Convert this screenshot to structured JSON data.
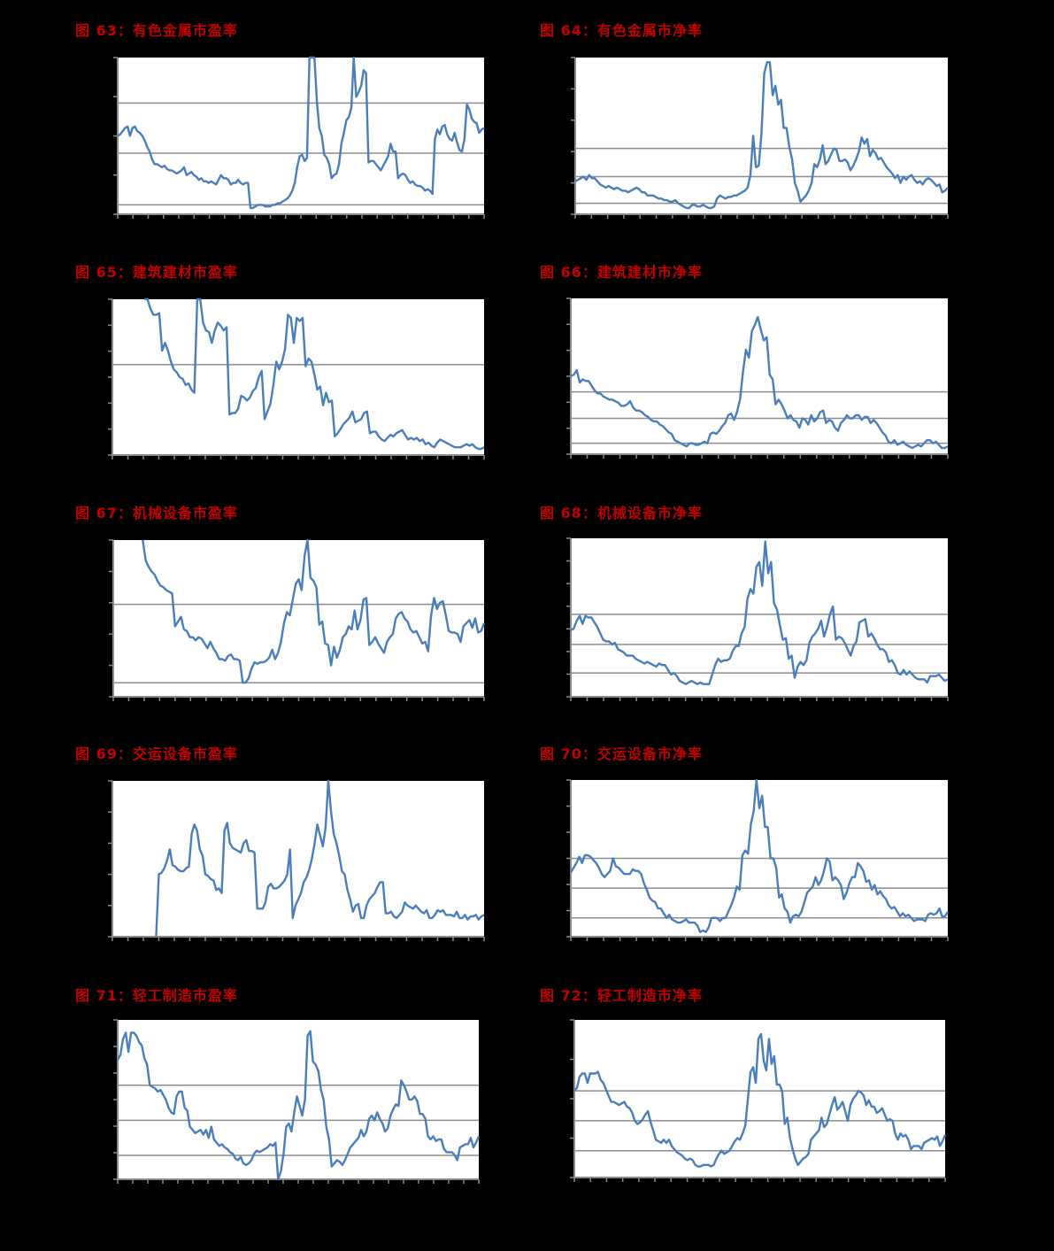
{
  "page": {
    "background": "#000000",
    "title_color": "#c00000",
    "line_color": "#4a7ebb",
    "ref_line_color": "#8c8c8c",
    "plot_bg": "#ffffff"
  },
  "chart_data": [
    {
      "id": "fig63",
      "type": "line",
      "title": "图 63：有色金属市盈率",
      "xlabel": "",
      "ylabel": "",
      "grid": false,
      "legend": null,
      "y_ticks": 4,
      "x_ticks": 24,
      "ref_lines": [
        71,
        39,
        6
      ],
      "note": "values normalized 0-100 of plot height; peaks clipped at top",
      "values": [
        50,
        51,
        53,
        55,
        56,
        50,
        55,
        56,
        53,
        52,
        50,
        47,
        43,
        40,
        35,
        32,
        32,
        31,
        30,
        31,
        29,
        28,
        28,
        27,
        26,
        27,
        28,
        30,
        25,
        26,
        27,
        25,
        24,
        22,
        23,
        21,
        21,
        20,
        21,
        20,
        19,
        22,
        25,
        23,
        23,
        22,
        19,
        20,
        20,
        22,
        20,
        19,
        20,
        20,
        4,
        4,
        5,
        6,
        6,
        6,
        5,
        5,
        5,
        6,
        6,
        7,
        7,
        8,
        9,
        10,
        12,
        15,
        20,
        30,
        37,
        38,
        34,
        36,
        100,
        100,
        100,
        72,
        55,
        50,
        38,
        36,
        32,
        23,
        25,
        26,
        32,
        45,
        52,
        60,
        62,
        68,
        100,
        75,
        78,
        82,
        92,
        90,
        33,
        34,
        34,
        32,
        30,
        28,
        31,
        34,
        37,
        45,
        40,
        40,
        23,
        25,
        26,
        25,
        22,
        20,
        21,
        19,
        18,
        18,
        17,
        15,
        16,
        15,
        13,
        48,
        54,
        51,
        56,
        57,
        51,
        48,
        47,
        52,
        46,
        41,
        40,
        48,
        70,
        67,
        61,
        59,
        58,
        52,
        54,
        55
      ]
    },
    {
      "id": "fig64",
      "type": "line",
      "title": "图 64：有色金属市净率",
      "xlabel": "",
      "ylabel": "",
      "grid": false,
      "legend": null,
      "y_ticks": 5,
      "x_ticks": 23,
      "ref_lines": [
        42,
        24,
        7
      ],
      "values": [
        21,
        22,
        23,
        24,
        22,
        25,
        23,
        23,
        21,
        19,
        18,
        17,
        18,
        17,
        16,
        17,
        16,
        15,
        15,
        14,
        15,
        16,
        17,
        16,
        14,
        14,
        12,
        12,
        12,
        11,
        10,
        10,
        9,
        9,
        8,
        8,
        9,
        7,
        6,
        5,
        4,
        4,
        6,
        6,
        5,
        5,
        6,
        5,
        4,
        4,
        5,
        10,
        12,
        11,
        10,
        11,
        11,
        12,
        12,
        13,
        14,
        15,
        17,
        25,
        50,
        30,
        31,
        52,
        90,
        97,
        97,
        76,
        82,
        70,
        73,
        55,
        55,
        43,
        35,
        20,
        15,
        8,
        10,
        12,
        15,
        20,
        32,
        30,
        35,
        44,
        32,
        34,
        38,
        42,
        41,
        34,
        34,
        35,
        33,
        28,
        31,
        35,
        40,
        49,
        45,
        48,
        37,
        41,
        39,
        35,
        36,
        33,
        30,
        28,
        26,
        23,
        25,
        20,
        24,
        22,
        24,
        25,
        22,
        20,
        21,
        19,
        22,
        23,
        22,
        20,
        18,
        19,
        14,
        15,
        17
      ]
    },
    {
      "id": "fig65",
      "type": "line",
      "title": "图 65：建筑建材市盈率",
      "xlabel": "",
      "ylabel": "",
      "grid": false,
      "legend": null,
      "y_ticks": 6,
      "x_ticks": 24,
      "ref_lines": [
        58
      ],
      "values": [
        null,
        null,
        null,
        null,
        null,
        null,
        null,
        null,
        null,
        null,
        null,
        100,
        100,
        94,
        90,
        90,
        91,
        67,
        72,
        67,
        60,
        55,
        53,
        50,
        49,
        45,
        46,
        42,
        40,
        100,
        100,
        85,
        80,
        79,
        72,
        80,
        85,
        83,
        80,
        82,
        26,
        27,
        27,
        30,
        38,
        37,
        35,
        37,
        41,
        43,
        50,
        54,
        23,
        28,
        33,
        45,
        60,
        55,
        60,
        68,
        90,
        88,
        72,
        88,
        86,
        88,
        57,
        62,
        60,
        52,
        42,
        44,
        32,
        40,
        34,
        35,
        12,
        14,
        17,
        20,
        22,
        24,
        28,
        21,
        22,
        23,
        27,
        28,
        14,
        15,
        15,
        12,
        10,
        9,
        11,
        13,
        12,
        14,
        15,
        16,
        13,
        10,
        11,
        10,
        11,
        9,
        10,
        7,
        8,
        6,
        5,
        8,
        10,
        9,
        8,
        7,
        6,
        5,
        5,
        5,
        6,
        7,
        6,
        7,
        5,
        4,
        4,
        5
      ]
    },
    {
      "id": "fig66",
      "type": "line",
      "title": "图 66：建筑建材市净率",
      "xlabel": "",
      "ylabel": "",
      "grid": false,
      "legend": null,
      "y_ticks": 6,
      "x_ticks": 23,
      "ref_lines": [
        40,
        23,
        7
      ],
      "values": [
        50,
        51,
        54,
        46,
        48,
        47,
        47,
        44,
        41,
        39,
        39,
        37,
        36,
        35,
        35,
        34,
        33,
        31,
        31,
        32,
        34,
        30,
        28,
        28,
        27,
        25,
        24,
        22,
        21,
        21,
        19,
        18,
        16,
        14,
        13,
        9,
        8,
        7,
        6,
        5,
        7,
        7,
        6,
        6,
        7,
        8,
        7,
        13,
        14,
        13,
        15,
        18,
        20,
        25,
        26,
        22,
        27,
        35,
        53,
        67,
        62,
        79,
        83,
        88,
        80,
        73,
        75,
        51,
        48,
        32,
        35,
        32,
        28,
        23,
        25,
        22,
        21,
        17,
        23,
        22,
        19,
        25,
        21,
        23,
        27,
        28,
        20,
        22,
        21,
        17,
        15,
        20,
        22,
        25,
        23,
        23,
        25,
        25,
        22,
        24,
        24,
        20,
        22,
        20,
        17,
        14,
        12,
        8,
        7,
        9,
        6,
        7,
        8,
        6,
        5,
        4,
        5,
        6,
        5,
        7,
        9,
        9,
        7,
        8,
        6,
        4,
        4,
        5
      ]
    },
    {
      "id": "fig67",
      "type": "line",
      "title": "图 67：机械设备市盈率",
      "xlabel": "",
      "ylabel": "",
      "grid": false,
      "legend": null,
      "y_ticks": 5,
      "x_ticks": 24,
      "ref_lines": [
        59,
        9
      ],
      "values": [
        null,
        null,
        null,
        null,
        null,
        null,
        null,
        null,
        null,
        null,
        100,
        87,
        83,
        80,
        78,
        74,
        71,
        70,
        68,
        67,
        66,
        45,
        48,
        51,
        43,
        42,
        38,
        38,
        36,
        38,
        37,
        34,
        31,
        35,
        31,
        28,
        24,
        24,
        23,
        26,
        27,
        24,
        24,
        23,
        9,
        9,
        12,
        18,
        22,
        21,
        22,
        22,
        23,
        25,
        30,
        24,
        28,
        35,
        47,
        54,
        52,
        62,
        72,
        75,
        68,
        90,
        100,
        76,
        74,
        70,
        46,
        48,
        34,
        33,
        20,
        32,
        25,
        30,
        38,
        40,
        45,
        43,
        55,
        43,
        49,
        62,
        63,
        33,
        35,
        38,
        34,
        31,
        28,
        35,
        38,
        40,
        50,
        53,
        54,
        50,
        48,
        43,
        41,
        42,
        38,
        34,
        35,
        29,
        52,
        63,
        56,
        60,
        61,
        52,
        42,
        41,
        41,
        40,
        35,
        45,
        47,
        49,
        44,
        50,
        41,
        42,
        47
      ]
    },
    {
      "id": "fig68",
      "type": "line",
      "title": "图 68：机械设备市净率",
      "xlabel": "",
      "ylabel": "",
      "grid": false,
      "legend": null,
      "y_ticks": 7,
      "x_ticks": 23,
      "ref_lines": [
        52,
        33,
        15
      ],
      "values": [
        42,
        43,
        48,
        51,
        46,
        51,
        50,
        50,
        47,
        44,
        40,
        36,
        35,
        35,
        33,
        34,
        30,
        29,
        28,
        26,
        26,
        26,
        24,
        23,
        22,
        21,
        22,
        21,
        20,
        19,
        21,
        20,
        20,
        17,
        14,
        15,
        13,
        10,
        9,
        8,
        9,
        10,
        9,
        8,
        9,
        8,
        8,
        8,
        14,
        20,
        24,
        22,
        23,
        23,
        24,
        29,
        32,
        32,
        40,
        44,
        62,
        68,
        65,
        82,
        85,
        70,
        98,
        78,
        85,
        59,
        55,
        45,
        36,
        37,
        24,
        26,
        12,
        19,
        22,
        20,
        23,
        34,
        38,
        40,
        43,
        48,
        38,
        44,
        52,
        57,
        36,
        38,
        37,
        34,
        30,
        26,
        32,
        35,
        47,
        48,
        49,
        38,
        40,
        37,
        33,
        30,
        30,
        28,
        22,
        23,
        20,
        15,
        14,
        17,
        14,
        16,
        14,
        12,
        11,
        11,
        11,
        9,
        13,
        13,
        13,
        14,
        12,
        10,
        11
      ]
    },
    {
      "id": "fig69",
      "type": "line",
      "title": "图 69：交运设备市盈率",
      "xlabel": "",
      "ylabel": "",
      "grid": false,
      "legend": null,
      "y_ticks": 5,
      "x_ticks": 24,
      "ref_lines": [],
      "values": [
        null,
        null,
        null,
        null,
        null,
        null,
        null,
        null,
        null,
        null,
        null,
        null,
        null,
        null,
        null,
        null,
        0,
        40,
        41,
        44,
        49,
        56,
        46,
        45,
        43,
        42,
        42,
        44,
        45,
        66,
        72,
        68,
        56,
        52,
        40,
        39,
        37,
        36,
        30,
        31,
        28,
        68,
        73,
        60,
        57,
        56,
        55,
        54,
        60,
        62,
        55,
        55,
        54,
        18,
        18,
        18,
        22,
        32,
        34,
        31,
        31,
        32,
        34,
        36,
        40,
        56,
        12,
        20,
        24,
        28,
        35,
        38,
        43,
        50,
        60,
        72,
        65,
        58,
        70,
        100,
        80,
        66,
        60,
        52,
        42,
        40,
        30,
        24,
        16,
        20,
        21,
        12,
        12,
        20,
        24,
        26,
        28,
        32,
        35,
        35,
        15,
        15,
        16,
        13,
        12,
        14,
        16,
        22,
        20,
        19,
        18,
        20,
        18,
        16,
        15,
        17,
        12,
        12,
        14,
        17,
        16,
        17,
        14,
        14,
        14,
        13,
        16,
        12,
        12,
        14,
        11,
        13,
        13,
        14,
        11,
        13,
        14
      ]
    },
    {
      "id": "fig70",
      "type": "line",
      "title": "图 70：交运设备市净率",
      "xlabel": "",
      "ylabel": "",
      "grid": false,
      "legend": null,
      "y_ticks": 6,
      "x_ticks": 23,
      "ref_lines": [
        50,
        31,
        12
      ],
      "values": [
        41,
        44,
        47,
        51,
        47,
        52,
        52,
        51,
        49,
        47,
        44,
        40,
        38,
        40,
        42,
        50,
        45,
        44,
        42,
        40,
        40,
        40,
        43,
        42,
        42,
        40,
        34,
        30,
        25,
        23,
        22,
        18,
        18,
        15,
        12,
        14,
        11,
        10,
        9,
        9,
        10,
        11,
        9,
        9,
        9,
        7,
        3,
        4,
        3,
        6,
        12,
        12,
        12,
        10,
        12,
        12,
        16,
        20,
        25,
        32,
        30,
        52,
        55,
        53,
        72,
        80,
        100,
        82,
        90,
        70,
        70,
        50,
        50,
        44,
        25,
        27,
        18,
        16,
        9,
        13,
        14,
        13,
        16,
        22,
        28,
        30,
        32,
        38,
        33,
        36,
        42,
        50,
        48,
        36,
        38,
        36,
        33,
        24,
        28,
        34,
        38,
        38,
        47,
        45,
        42,
        35,
        36,
        30,
        33,
        27,
        29,
        26,
        24,
        20,
        18,
        19,
        16,
        13,
        15,
        13,
        14,
        12,
        10,
        11,
        11,
        11,
        10,
        14,
        15,
        14,
        15,
        18,
        13,
        13,
        16
      ]
    },
    {
      "id": "fig71",
      "type": "line",
      "title": "图 71：轻工制造市盈率",
      "xlabel": "",
      "ylabel": "",
      "grid": false,
      "legend": null,
      "y_ticks": 6,
      "x_ticks": 24,
      "ref_lines": [
        59,
        37,
        15
      ],
      "values": [
        75,
        78,
        88,
        92,
        80,
        92,
        92,
        90,
        86,
        84,
        76,
        72,
        59,
        58,
        57,
        55,
        56,
        53,
        50,
        45,
        42,
        41,
        52,
        55,
        55,
        45,
        43,
        33,
        31,
        29,
        30,
        31,
        28,
        31,
        26,
        33,
        25,
        23,
        21,
        22,
        20,
        19,
        17,
        16,
        13,
        12,
        14,
        10,
        9,
        10,
        12,
        16,
        18,
        17,
        18,
        19,
        20,
        22,
        21,
        23,
        0,
        5,
        16,
        33,
        35,
        30,
        42,
        52,
        46,
        40,
        50,
        90,
        93,
        74,
        72,
        68,
        56,
        50,
        33,
        25,
        8,
        10,
        12,
        11,
        9,
        12,
        16,
        20,
        22,
        24,
        26,
        31,
        27,
        30,
        38,
        40,
        37,
        42,
        38,
        35,
        30,
        32,
        40,
        44,
        47,
        46,
        62,
        59,
        55,
        50,
        50,
        52,
        49,
        41,
        41,
        38,
        27,
        25,
        27,
        24,
        25,
        25,
        19,
        17,
        17,
        17,
        15,
        12,
        20,
        21,
        22,
        22,
        26,
        20,
        23,
        27
      ]
    },
    {
      "id": "fig72",
      "type": "line",
      "title": "图 72：轻工制造市净率",
      "xlabel": "",
      "ylabel": "",
      "grid": false,
      "legend": null,
      "y_ticks": 4,
      "x_ticks": 23,
      "ref_lines": [
        55,
        36,
        17
      ],
      "values": [
        55,
        57,
        64,
        66,
        66,
        60,
        66,
        66,
        66,
        67,
        62,
        60,
        56,
        52,
        48,
        48,
        47,
        46,
        47,
        48,
        45,
        44,
        41,
        36,
        34,
        35,
        37,
        40,
        42,
        35,
        30,
        24,
        23,
        22,
        24,
        22,
        24,
        20,
        18,
        16,
        15,
        14,
        12,
        11,
        12,
        11,
        8,
        7,
        7,
        8,
        8,
        8,
        7,
        8,
        12,
        15,
        17,
        15,
        16,
        17,
        20,
        23,
        25,
        24,
        28,
        33,
        50,
        67,
        70,
        60,
        88,
        91,
        74,
        68,
        88,
        72,
        77,
        59,
        59,
        55,
        34,
        38,
        25,
        18,
        12,
        8,
        10,
        12,
        13,
        15,
        24,
        26,
        28,
        30,
        38,
        32,
        34,
        40,
        46,
        51,
        43,
        45,
        48,
        42,
        36,
        46,
        50,
        52,
        55,
        54,
        52,
        46,
        49,
        45,
        45,
        41,
        42,
        44,
        40,
        36,
        37,
        36,
        28,
        24,
        28,
        26,
        27,
        24,
        18,
        20,
        20,
        20,
        18,
        22,
        23,
        24,
        25,
        24,
        26,
        20,
        23,
        27
      ]
    }
  ]
}
